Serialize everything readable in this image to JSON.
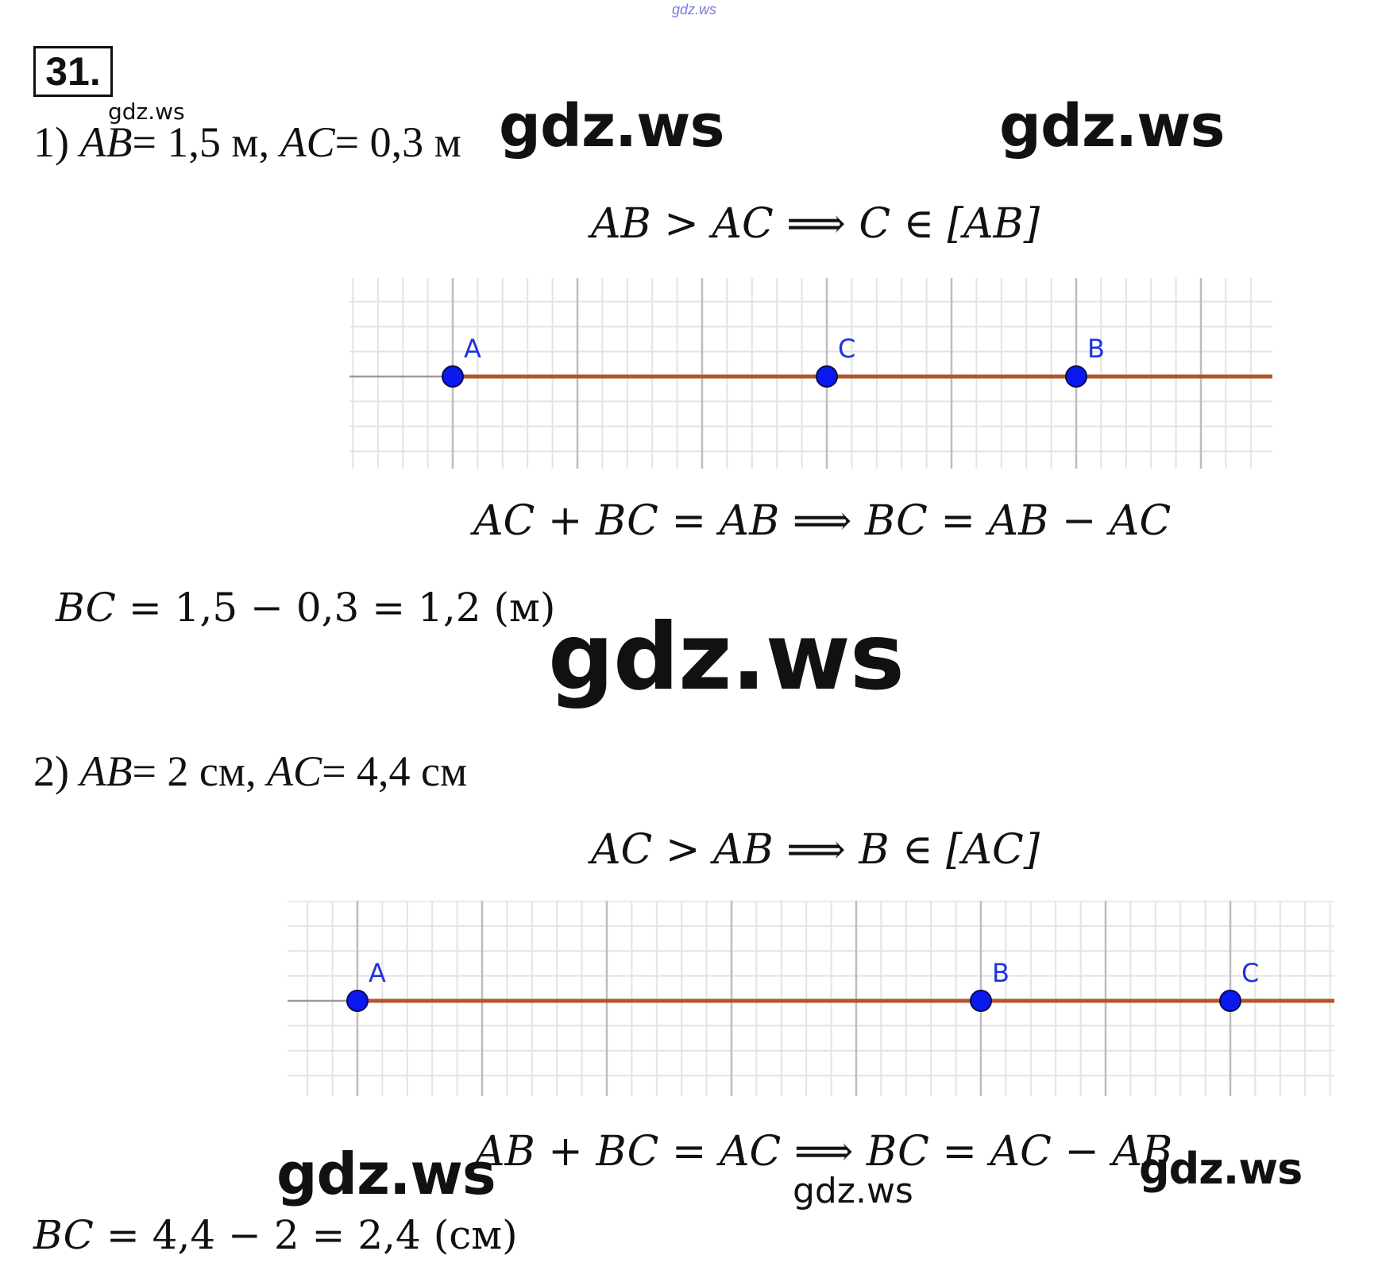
{
  "watermarks": {
    "top": "gdz.ws",
    "small_1": "gdz.ws",
    "large_1": "gdz.ws",
    "large_2": "gdz.ws",
    "center": "gdz.ws",
    "bottom_left": "gdz.ws",
    "bottom_mid": "gdz.ws",
    "bottom_right": "gdz.ws"
  },
  "problem_number": "31.",
  "part1": {
    "label": "1)",
    "seg1": "AB",
    "eq1": "= 1,5 м,",
    "seg2": "AC",
    "eq2": "= 0,3 м",
    "relation": "AB > AC ⟹ C ∈ [AB]",
    "sum": "AC + BC = AB ⟹ BC = AB − AC",
    "calc_var": "BC",
    "calc_expr": "= 1,5 − 0,3 = 1,2 (м)",
    "points": [
      {
        "name": "A",
        "pos": 0
      },
      {
        "name": "C",
        "pos": 3
      },
      {
        "name": "B",
        "pos": 5
      }
    ]
  },
  "part2": {
    "label": "2)",
    "seg1": "AB",
    "eq1": "= 2 см,",
    "seg2": "AC",
    "eq2": "= 4,4 см",
    "relation": "AC > AB ⟹ B ∈ [AC]",
    "sum": "AB + BC = AC ⟹ BC = AC − AB",
    "calc_var": "BC",
    "calc_expr": "= 4,4 − 2 = 2,4 (см)",
    "points": [
      {
        "name": "A",
        "pos": 0
      },
      {
        "name": "B",
        "pos": 5
      },
      {
        "name": "C",
        "pos": 7
      }
    ]
  },
  "colors": {
    "segment": "#b5562a",
    "point": "#0a1aee",
    "label": "#2233dd",
    "grid_minor": "#e3e3e3",
    "grid_major": "#bdbdbd"
  }
}
